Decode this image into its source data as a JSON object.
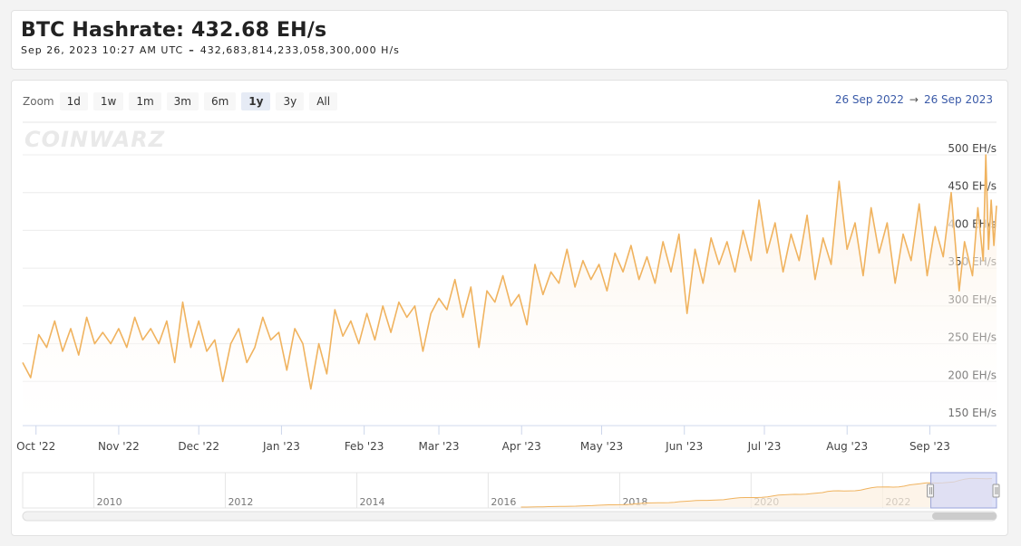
{
  "header": {
    "title": "BTC Hashrate: 432.68 EH/s",
    "timestamp": "Sep 26, 2023 10:27 AM UTC",
    "separator": "–",
    "raw_value": "432,683,814,233,058,300,000 H/s"
  },
  "zoom": {
    "label": "Zoom",
    "buttons": [
      "1d",
      "1w",
      "1m",
      "3m",
      "6m",
      "1y",
      "3y",
      "All"
    ],
    "active": "1y"
  },
  "range": {
    "from": "26 Sep 2022",
    "arrow": "→",
    "to": "26 Sep 2023"
  },
  "watermark": "COINWARZ",
  "colors": {
    "series": "#f0b35f",
    "fill_top": "#fcefe0",
    "navigator_select": "#d5d9f5",
    "range_text": "#3a5aa8"
  },
  "chart_data": {
    "type": "line",
    "title": "BTC Hashrate: 432.68 EH/s",
    "x_tick_labels": [
      "Oct '22",
      "Nov '22",
      "Dec '22",
      "Jan '23",
      "Feb '23",
      "Mar '23",
      "Apr '23",
      "May '23",
      "Jun '23",
      "Jul '23",
      "Aug '23",
      "Sep '23"
    ],
    "x_range": [
      "2022-09-26",
      "2023-09-26"
    ],
    "y_tick_labels": [
      "150 EH/s",
      "200 EH/s",
      "250 EH/s",
      "300 EH/s",
      "350 EH/s",
      "400 EH/s",
      "450 EH/s",
      "500 EH/s"
    ],
    "ylim": [
      150,
      500
    ],
    "y_unit": "EH/s",
    "series": [
      {
        "values": [
          [
            "2022-09-26",
            225
          ],
          [
            "2022-09-29",
            205
          ],
          [
            "2022-10-02",
            262
          ],
          [
            "2022-10-05",
            245
          ],
          [
            "2022-10-08",
            280
          ],
          [
            "2022-10-11",
            240
          ],
          [
            "2022-10-14",
            270
          ],
          [
            "2022-10-17",
            235
          ],
          [
            "2022-10-20",
            285
          ],
          [
            "2022-10-23",
            250
          ],
          [
            "2022-10-26",
            265
          ],
          [
            "2022-10-29",
            250
          ],
          [
            "2022-11-01",
            270
          ],
          [
            "2022-11-04",
            245
          ],
          [
            "2022-11-07",
            285
          ],
          [
            "2022-11-10",
            255
          ],
          [
            "2022-11-13",
            270
          ],
          [
            "2022-11-16",
            250
          ],
          [
            "2022-11-19",
            280
          ],
          [
            "2022-11-22",
            225
          ],
          [
            "2022-11-25",
            305
          ],
          [
            "2022-11-28",
            245
          ],
          [
            "2022-12-01",
            280
          ],
          [
            "2022-12-04",
            240
          ],
          [
            "2022-12-07",
            255
          ],
          [
            "2022-12-10",
            200
          ],
          [
            "2022-12-13",
            250
          ],
          [
            "2022-12-16",
            270
          ],
          [
            "2022-12-19",
            225
          ],
          [
            "2022-12-22",
            245
          ],
          [
            "2022-12-25",
            285
          ],
          [
            "2022-12-28",
            255
          ],
          [
            "2022-12-31",
            265
          ],
          [
            "2023-01-03",
            215
          ],
          [
            "2023-01-06",
            270
          ],
          [
            "2023-01-09",
            250
          ],
          [
            "2023-01-12",
            190
          ],
          [
            "2023-01-15",
            250
          ],
          [
            "2023-01-18",
            210
          ],
          [
            "2023-01-21",
            295
          ],
          [
            "2023-01-24",
            260
          ],
          [
            "2023-01-27",
            280
          ],
          [
            "2023-01-30",
            250
          ],
          [
            "2023-02-02",
            290
          ],
          [
            "2023-02-05",
            255
          ],
          [
            "2023-02-08",
            300
          ],
          [
            "2023-02-11",
            265
          ],
          [
            "2023-02-14",
            305
          ],
          [
            "2023-02-17",
            285
          ],
          [
            "2023-02-20",
            300
          ],
          [
            "2023-02-23",
            240
          ],
          [
            "2023-02-26",
            290
          ],
          [
            "2023-03-01",
            310
          ],
          [
            "2023-03-04",
            295
          ],
          [
            "2023-03-07",
            335
          ],
          [
            "2023-03-10",
            285
          ],
          [
            "2023-03-13",
            325
          ],
          [
            "2023-03-16",
            245
          ],
          [
            "2023-03-19",
            320
          ],
          [
            "2023-03-22",
            305
          ],
          [
            "2023-03-25",
            340
          ],
          [
            "2023-03-28",
            300
          ],
          [
            "2023-03-31",
            315
          ],
          [
            "2023-04-03",
            275
          ],
          [
            "2023-04-06",
            355
          ],
          [
            "2023-04-09",
            315
          ],
          [
            "2023-04-12",
            345
          ],
          [
            "2023-04-15",
            330
          ],
          [
            "2023-04-18",
            375
          ],
          [
            "2023-04-21",
            325
          ],
          [
            "2023-04-24",
            360
          ],
          [
            "2023-04-27",
            335
          ],
          [
            "2023-04-30",
            355
          ],
          [
            "2023-05-03",
            320
          ],
          [
            "2023-05-06",
            370
          ],
          [
            "2023-05-09",
            345
          ],
          [
            "2023-05-12",
            380
          ],
          [
            "2023-05-15",
            335
          ],
          [
            "2023-05-18",
            365
          ],
          [
            "2023-05-21",
            330
          ],
          [
            "2023-05-24",
            385
          ],
          [
            "2023-05-27",
            345
          ],
          [
            "2023-05-30",
            395
          ],
          [
            "2023-06-02",
            290
          ],
          [
            "2023-06-05",
            375
          ],
          [
            "2023-06-08",
            330
          ],
          [
            "2023-06-11",
            390
          ],
          [
            "2023-06-14",
            355
          ],
          [
            "2023-06-17",
            385
          ],
          [
            "2023-06-20",
            345
          ],
          [
            "2023-06-23",
            400
          ],
          [
            "2023-06-26",
            360
          ],
          [
            "2023-06-29",
            440
          ],
          [
            "2023-07-02",
            370
          ],
          [
            "2023-07-05",
            410
          ],
          [
            "2023-07-08",
            345
          ],
          [
            "2023-07-11",
            395
          ],
          [
            "2023-07-14",
            360
          ],
          [
            "2023-07-17",
            420
          ],
          [
            "2023-07-20",
            335
          ],
          [
            "2023-07-23",
            390
          ],
          [
            "2023-07-26",
            355
          ],
          [
            "2023-07-29",
            465
          ],
          [
            "2023-08-01",
            375
          ],
          [
            "2023-08-04",
            410
          ],
          [
            "2023-08-07",
            340
          ],
          [
            "2023-08-10",
            430
          ],
          [
            "2023-08-13",
            370
          ],
          [
            "2023-08-16",
            410
          ],
          [
            "2023-08-19",
            330
          ],
          [
            "2023-08-22",
            395
          ],
          [
            "2023-08-25",
            360
          ],
          [
            "2023-08-28",
            435
          ],
          [
            "2023-08-31",
            340
          ],
          [
            "2023-09-03",
            405
          ],
          [
            "2023-09-06",
            365
          ],
          [
            "2023-09-09",
            450
          ],
          [
            "2023-09-12",
            320
          ],
          [
            "2023-09-14",
            385
          ],
          [
            "2023-09-17",
            340
          ],
          [
            "2023-09-19",
            430
          ],
          [
            "2023-09-21",
            360
          ],
          [
            "2023-09-22",
            500
          ],
          [
            "2023-09-23",
            375
          ],
          [
            "2023-09-24",
            440
          ],
          [
            "2023-09-25",
            380
          ],
          [
            "2023-09-26",
            432.68
          ]
        ]
      }
    ],
    "navigator": {
      "x_tick_labels": [
        "2010",
        "2012",
        "2014",
        "2016",
        "2018",
        "2020",
        "2022"
      ],
      "x_range": [
        "2008-12-01",
        "2023-09-26"
      ],
      "selected_range": [
        "2022-09-26",
        "2023-09-26"
      ]
    },
    "grid": true
  }
}
